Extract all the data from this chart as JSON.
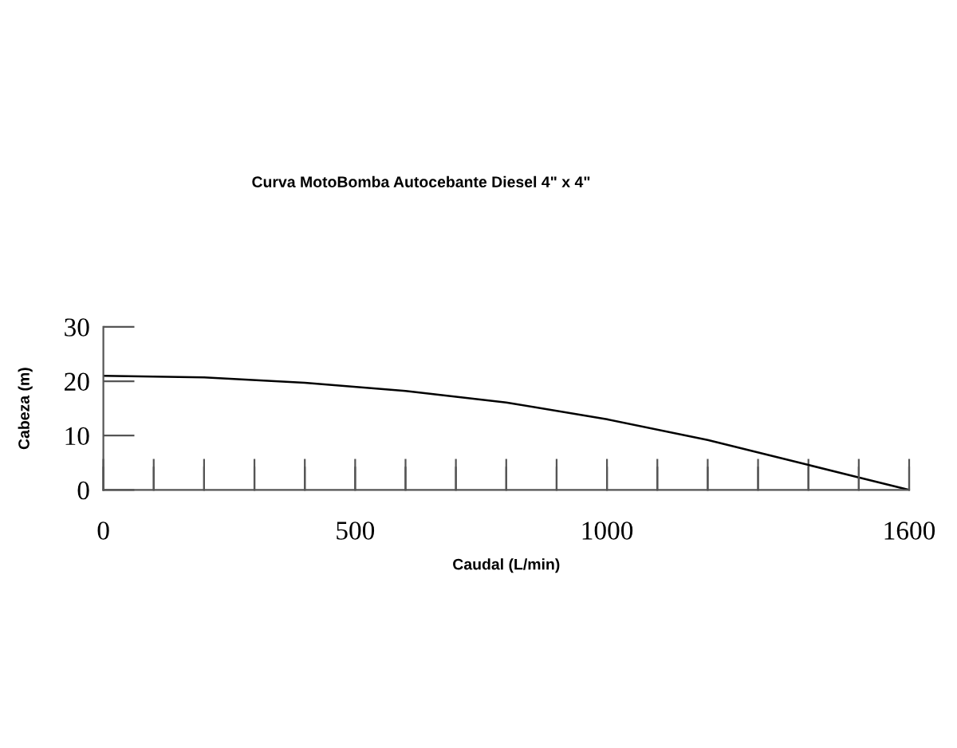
{
  "chart_data": {
    "type": "line",
    "title": "Curva MotoBomba Autocebante Diesel 4\" x 4\"",
    "xlabel": "Caudal (L/min)",
    "ylabel": "Cabeza (m)",
    "x": [
      0,
      200,
      400,
      600,
      800,
      1000,
      1200,
      1400,
      1500,
      1600
    ],
    "series": [
      {
        "color": "#000000",
        "values": [
          21.0,
          20.7,
          19.7,
          18.2,
          16.1,
          13.0,
          9.2,
          4.6,
          2.3,
          0
        ]
      }
    ],
    "xlim": [
      0,
      1600
    ],
    "ylim": [
      0,
      30
    ],
    "xticks": [
      0,
      {
        "value": 100,
        "label": null
      },
      {
        "value": 200,
        "label": null
      },
      {
        "value": 300,
        "label": null
      },
      {
        "value": 400,
        "label": null
      },
      500,
      {
        "value": 600,
        "label": null
      },
      {
        "value": 700,
        "label": null
      },
      {
        "value": 800,
        "label": null
      },
      {
        "value": 900,
        "label": null
      },
      1000,
      {
        "value": 1100,
        "label": null
      },
      {
        "value": 1200,
        "label": null
      },
      {
        "value": 1300,
        "label": null
      },
      {
        "value": 1400,
        "label": null
      },
      {
        "value": 1500,
        "label": null
      },
      1600
    ],
    "yticks": [
      0,
      10,
      20,
      30
    ],
    "grid": false,
    "marker": "none",
    "line_style": "solid"
  }
}
